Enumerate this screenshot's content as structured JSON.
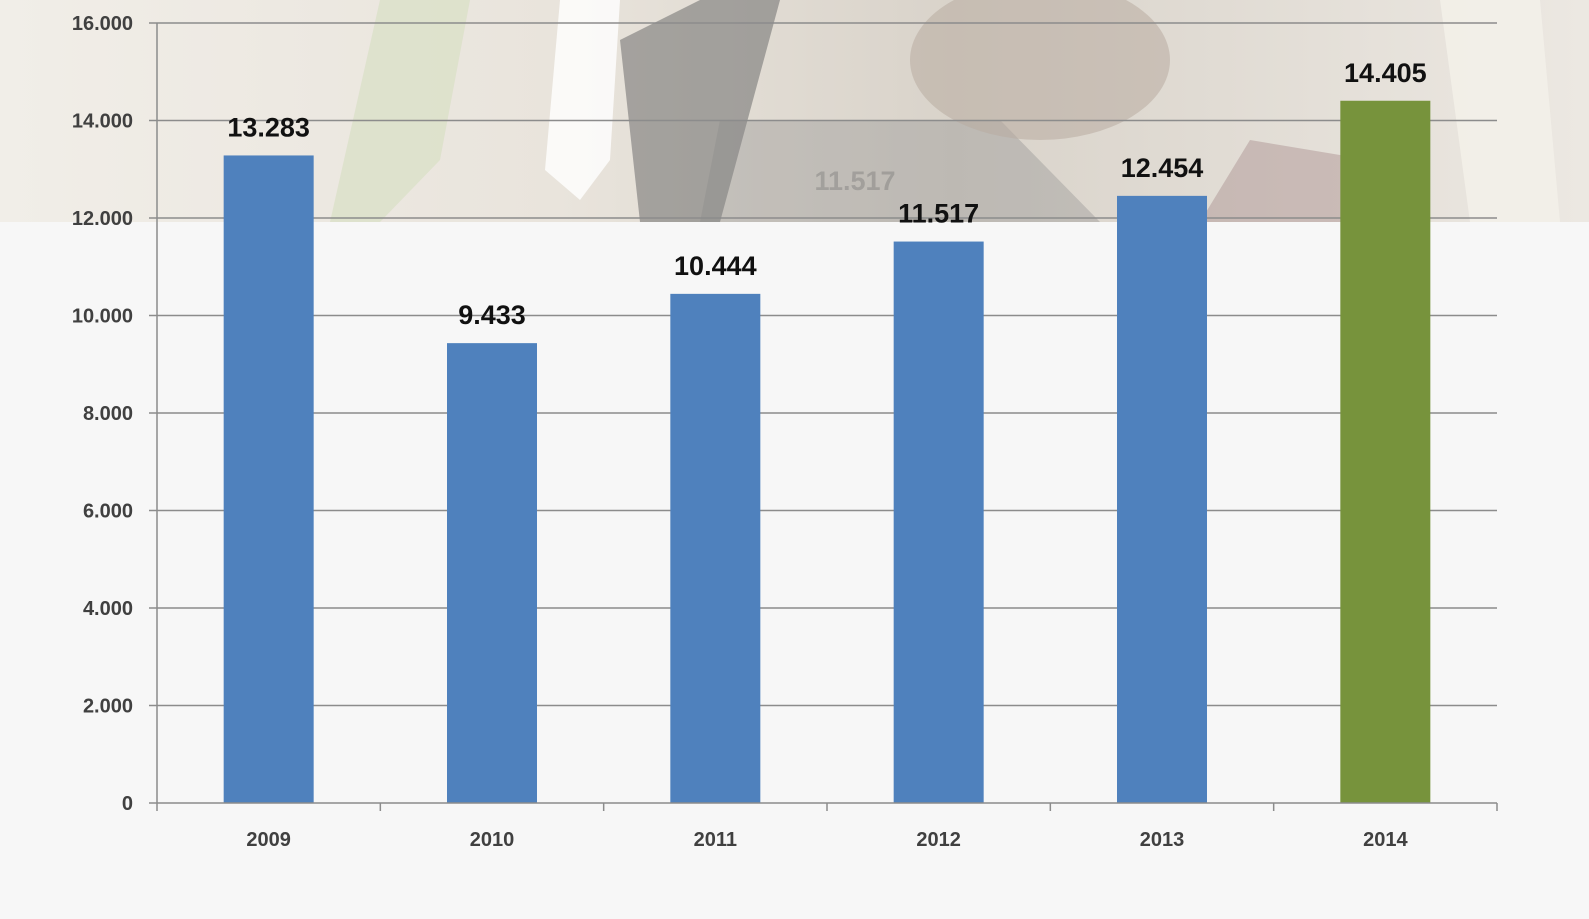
{
  "chart_data": {
    "type": "bar",
    "categories": [
      "2009",
      "2010",
      "2011",
      "2012",
      "2013",
      "2014"
    ],
    "values": [
      13283,
      9433,
      10444,
      11517,
      12454,
      14405
    ],
    "value_labels": [
      "13.283",
      "9.433",
      "10.444",
      "11.517",
      "12.454",
      "14.405"
    ],
    "ylim": [
      0,
      16000
    ],
    "y_ticks": [
      0,
      2000,
      4000,
      6000,
      8000,
      10000,
      12000,
      14000,
      16000
    ],
    "y_tick_labels": [
      "0",
      "2.000",
      "4.000",
      "6.000",
      "8.000",
      "10.000",
      "12.000",
      "14.000",
      "16.000"
    ],
    "bar_colors": [
      "#4f81bd",
      "#4f81bd",
      "#4f81bd",
      "#4f81bd",
      "#4f81bd",
      "#77933c"
    ],
    "grid": true,
    "background_photo_label": "11.517",
    "title": "",
    "xlabel": "",
    "ylabel": ""
  }
}
